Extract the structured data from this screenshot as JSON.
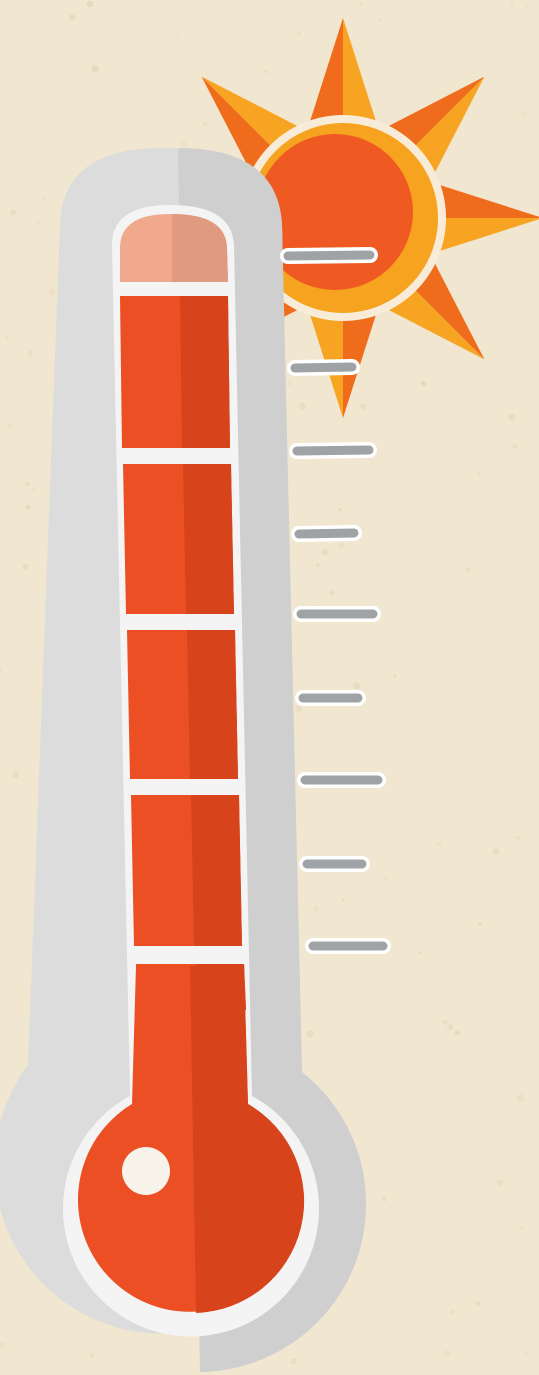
{
  "illustration": {
    "subject": "thermometer-with-sun",
    "icons": [
      "sun-icon",
      "thermometer-icon"
    ],
    "level": 1.0,
    "segments_total": 5,
    "segments_filled": 5,
    "tick_count": 9
  },
  "colors": {
    "background": "#f1e6d0",
    "background_speck": "#e3d2b2",
    "tube_shell": "#dcdcdc",
    "tube_shell_shade": "#cfcfcf",
    "tube_border": "#f4f4f4",
    "mercury": "#ec4f23",
    "mercury_shade": "#d7441c",
    "empty_cap": "#f0a98c",
    "empty_cap_shade": "#df9a80",
    "highlight": "#f7f2ea",
    "tick": "#9fa3a6",
    "tick_outline": "#ffffff",
    "sun_ray_light": "#f7a423",
    "sun_ray_dark": "#ef6c1d",
    "sun_ring": "#f6a31f",
    "sun_core": "#ee5a22",
    "sun_outline": "#f8ecd8"
  }
}
